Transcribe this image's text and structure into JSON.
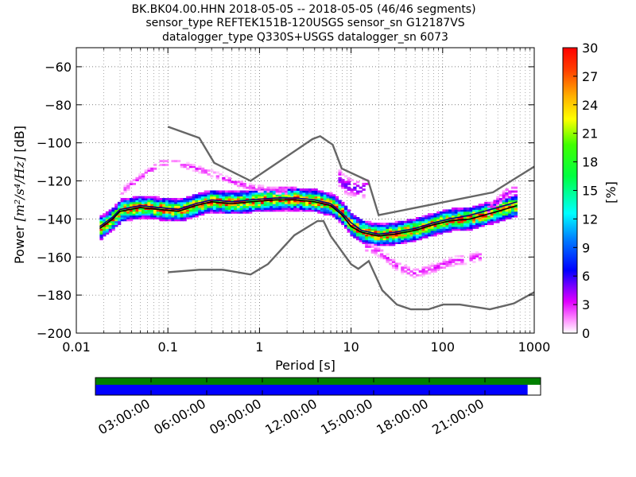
{
  "colors": {
    "grid": "#000000",
    "model": "#666666",
    "mode": "#000000",
    "mean": "#000080",
    "timeline_top": "#008000",
    "timeline_bottom": "#0000ff"
  },
  "chart_data": [
    {
      "type": "heatmap",
      "title_lines": [
        "BK.BK04.00.HHN   2018-05-05 -- 2018-05-05  (46/46 segments)",
        "sensor_type REFTEK151B-120USGS sensor_sn G12187VS",
        "datalogger_type Q330S+USGS datalogger_sn 6073"
      ],
      "xlabel": "Period [s]",
      "ylabel_main": "Power ",
      "ylabel_units": "[m²/s⁴/Hz]",
      "ylabel_db": " [dB]",
      "xscale": "log",
      "xlim": [
        0.01,
        1000
      ],
      "ylim": [
        -200,
        -50
      ],
      "x_ticks": [
        {
          "value": 0.01,
          "label": "0.01"
        },
        {
          "value": 0.1,
          "label": "0.1"
        },
        {
          "value": 1,
          "label": "1"
        },
        {
          "value": 10,
          "label": "10"
        },
        {
          "value": 100,
          "label": "100"
        },
        {
          "value": 1000,
          "label": "1000"
        }
      ],
      "y_ticks": [
        {
          "value": -60,
          "label": "−60"
        },
        {
          "value": -80,
          "label": "−80"
        },
        {
          "value": -100,
          "label": "−100"
        },
        {
          "value": -120,
          "label": "−120"
        },
        {
          "value": -140,
          "label": "−140"
        },
        {
          "value": -160,
          "label": "−160"
        },
        {
          "value": -180,
          "label": "−180"
        },
        {
          "value": -200,
          "label": "−200"
        }
      ],
      "grid": "dotted",
      "colorbar": {
        "label": "[%]",
        "min": 0,
        "max": 30,
        "ticks": [
          {
            "value": 0,
            "label": "0"
          },
          {
            "value": 3,
            "label": "3"
          },
          {
            "value": 6,
            "label": "6"
          },
          {
            "value": 9,
            "label": "9"
          },
          {
            "value": 12,
            "label": "12"
          },
          {
            "value": 15,
            "label": "15"
          },
          {
            "value": 18,
            "label": "18"
          },
          {
            "value": 21,
            "label": "21"
          },
          {
            "value": 24,
            "label": "24"
          },
          {
            "value": 27,
            "label": "27"
          },
          {
            "value": 30,
            "label": "30"
          }
        ]
      },
      "nhnm": [
        [
          0.1,
          -168
        ],
        [
          0.22,
          -166.7
        ],
        [
          0.4,
          -166.7
        ],
        [
          0.8,
          -169.2
        ],
        [
          1.24,
          -163.7
        ],
        [
          2.4,
          -148.6
        ],
        [
          4.3,
          -141.1
        ],
        [
          5,
          -141.1
        ],
        [
          6,
          -149
        ],
        [
          10,
          -163.8
        ],
        [
          12,
          -166.2
        ],
        [
          15.6,
          -162.1
        ],
        [
          21.9,
          -177.5
        ],
        [
          31.6,
          -185
        ],
        [
          45,
          -187.5
        ],
        [
          70,
          -187.5
        ],
        [
          101,
          -185
        ],
        [
          154,
          -185
        ],
        [
          328,
          -187.5
        ],
        [
          600,
          -184.4
        ],
        [
          1000,
          -178.5
        ]
      ],
      "nlnm": [
        [
          0.1,
          -91.5
        ],
        [
          0.22,
          -97.4
        ],
        [
          0.32,
          -110.5
        ],
        [
          0.8,
          -120
        ],
        [
          3.8,
          -98
        ],
        [
          4.6,
          -96.5
        ],
        [
          6.3,
          -101
        ],
        [
          7.9,
          -113.5
        ],
        [
          15.4,
          -120
        ],
        [
          20,
          -138
        ],
        [
          354.8,
          -126
        ],
        [
          1000,
          -112.5
        ]
      ],
      "mode_curve": [
        [
          0.018,
          -145
        ],
        [
          0.025,
          -140
        ],
        [
          0.03,
          -136
        ],
        [
          0.05,
          -134
        ],
        [
          0.08,
          -135
        ],
        [
          0.13,
          -136
        ],
        [
          0.2,
          -133
        ],
        [
          0.3,
          -131
        ],
        [
          0.5,
          -132
        ],
        [
          0.8,
          -131
        ],
        [
          1.5,
          -130
        ],
        [
          2.5,
          -130
        ],
        [
          4,
          -131
        ],
        [
          6,
          -133
        ],
        [
          8,
          -138
        ],
        [
          10,
          -144
        ],
        [
          13,
          -147
        ],
        [
          20,
          -149
        ],
        [
          30,
          -148
        ],
        [
          50,
          -146
        ],
        [
          80,
          -143
        ],
        [
          120,
          -141
        ],
        [
          200,
          -140
        ],
        [
          400,
          -136
        ],
        [
          650,
          -133
        ]
      ],
      "mean_curve": [
        [
          0.018,
          -144
        ],
        [
          0.025,
          -139
        ],
        [
          0.03,
          -135
        ],
        [
          0.05,
          -133
        ],
        [
          0.08,
          -134
        ],
        [
          0.13,
          -135
        ],
        [
          0.2,
          -132
        ],
        [
          0.3,
          -130
        ],
        [
          0.5,
          -131
        ],
        [
          0.8,
          -130
        ],
        [
          1.5,
          -129
        ],
        [
          2.5,
          -129
        ],
        [
          4,
          -130
        ],
        [
          6,
          -132
        ],
        [
          8,
          -137
        ],
        [
          10,
          -142
        ],
        [
          13,
          -146
        ],
        [
          20,
          -148
        ],
        [
          30,
          -147
        ],
        [
          50,
          -145
        ],
        [
          80,
          -142
        ],
        [
          120,
          -140
        ],
        [
          200,
          -138
        ],
        [
          400,
          -134
        ],
        [
          650,
          -131
        ]
      ],
      "psd_hist_bands": [
        {
          "name": "main",
          "curve": [
            [
              0.018,
              -145
            ],
            [
              0.025,
              -140
            ],
            [
              0.03,
              -136
            ],
            [
              0.05,
              -134
            ],
            [
              0.08,
              -135
            ],
            [
              0.13,
              -136
            ],
            [
              0.2,
              -133
            ],
            [
              0.3,
              -131
            ],
            [
              0.5,
              -132
            ],
            [
              0.8,
              -131
            ],
            [
              1.5,
              -130
            ],
            [
              2.5,
              -130
            ],
            [
              4,
              -131
            ],
            [
              6,
              -133
            ],
            [
              8,
              -138
            ],
            [
              10,
              -144
            ],
            [
              13,
              -147
            ],
            [
              20,
              -149
            ],
            [
              30,
              -148
            ],
            [
              50,
              -146
            ],
            [
              80,
              -143
            ],
            [
              120,
              -141
            ],
            [
              200,
              -140
            ],
            [
              400,
              -136
            ],
            [
              650,
              -133
            ]
          ],
          "halfwidth_db": 6,
          "peak_pct": 30
        },
        {
          "name": "upper-shortperiod",
          "curve": [
            [
              0.03,
              -126
            ],
            [
              0.05,
              -118
            ],
            [
              0.08,
              -111
            ],
            [
              0.12,
              -111
            ],
            [
              0.2,
              -114
            ],
            [
              0.35,
              -118
            ],
            [
              0.5,
              -121
            ],
            [
              0.8,
              -124
            ],
            [
              1.2,
              -125
            ],
            [
              2,
              -126
            ]
          ],
          "halfwidth_db": 2,
          "peak_pct": 3
        },
        {
          "name": "microseism-upper",
          "curve": [
            [
              7,
              -118
            ],
            [
              8,
              -122
            ],
            [
              10,
              -124
            ],
            [
              12,
              -125
            ],
            [
              15,
              -124
            ]
          ],
          "halfwidth_db": 5,
          "peak_pct": 5
        },
        {
          "name": "lower-longperiod",
          "curve": [
            [
              14,
              -155
            ],
            [
              20,
              -158
            ],
            [
              30,
              -165
            ],
            [
              45,
              -169
            ],
            [
              70,
              -167
            ],
            [
              120,
              -163
            ],
            [
              250,
              -160
            ]
          ],
          "halfwidth_db": 3,
          "peak_pct": 3
        },
        {
          "name": "very-longperiod",
          "curve": [
            [
              300,
              -136
            ],
            [
              500,
              -126
            ],
            [
              650,
              -125
            ]
          ],
          "halfwidth_db": 3,
          "peak_pct": 4
        }
      ]
    },
    {
      "type": "timeline",
      "x_ticks": [
        "03:00:00",
        "06:00:00",
        "09:00:00",
        "12:00:00",
        "15:00:00",
        "18:00:00",
        "21:00:00"
      ],
      "hours_start": 0,
      "hours_end": 24,
      "tick_hours": [
        3,
        6,
        9,
        12,
        15,
        18,
        21
      ],
      "green_coverage": [
        0,
        24
      ],
      "blue_coverage": [
        0,
        23.3
      ]
    }
  ]
}
